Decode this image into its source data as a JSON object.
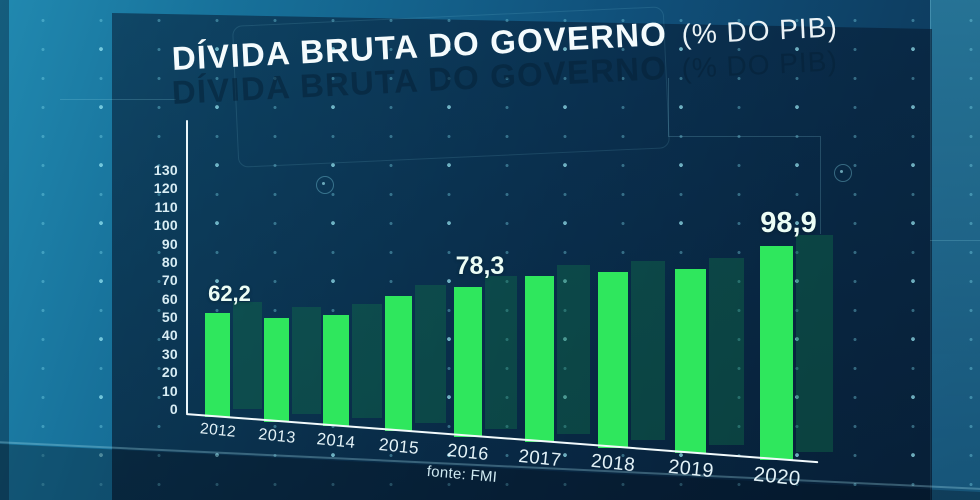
{
  "title": {
    "main": "DÍVIDA BRUTA DO GOVERNO",
    "suffix": "(% DO PIB)"
  },
  "source_label": "fonte: FMI",
  "chart_data": {
    "type": "bar",
    "title": "DÍVIDA BRUTA DO GOVERNO (% DO PIB)",
    "categories": [
      "2012",
      "2013",
      "2014",
      "2015",
      "2016",
      "2017",
      "2018",
      "2019",
      "2020"
    ],
    "values": [
      62.2,
      60,
      62,
      73,
      78.3,
      84,
      86,
      88,
      98.9
    ],
    "value_labels": [
      "62,2",
      "",
      "",
      "",
      "78,3",
      "",
      "",
      "",
      "98,9"
    ],
    "y_ticks": [
      130,
      120,
      110,
      100,
      90,
      80,
      70,
      60,
      50,
      40,
      30,
      20,
      10,
      0
    ],
    "ylim": [
      0,
      130
    ],
    "xlabel": "",
    "ylabel": "",
    "legend": false,
    "grid": "dotted-background",
    "source": "fonte: FMI",
    "bar_color": "#2fe75d",
    "bar_shadow_color": "#0d4a38",
    "axis_color": "#eef7fb",
    "value_label_color": "#ecfdf5",
    "tick_color": "#d8edf4"
  },
  "colors": {
    "background_teal": "#2189b0",
    "background_navy": "#0d3858",
    "panel": "#07203a",
    "dots": "#7ddaec",
    "floor_line": "#a8e6f2"
  }
}
